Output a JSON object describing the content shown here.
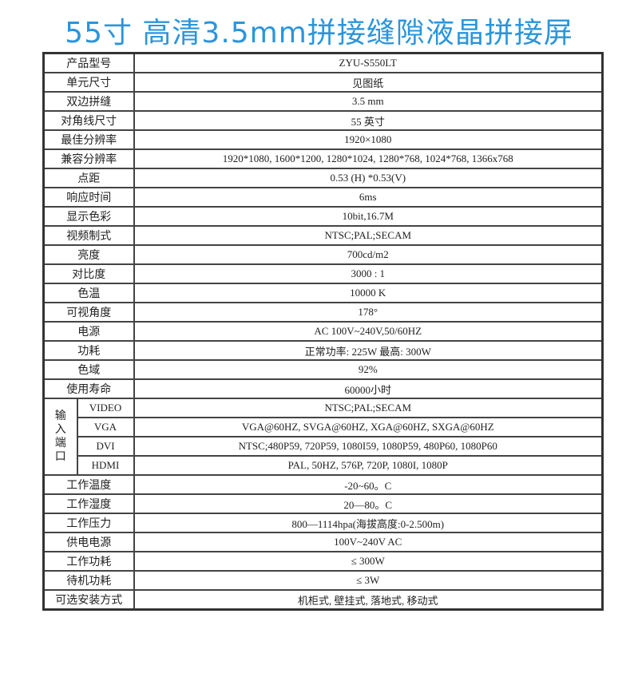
{
  "title": "55寸 高清3.5mm拼接缝隙液晶拼接屏",
  "rows_top": [
    {
      "label": "产品型号",
      "value": "ZYU-S550LT"
    },
    {
      "label": "单元尺寸",
      "value": "见图纸"
    },
    {
      "label": "双边拼缝",
      "value": "3.5 mm"
    },
    {
      "label": "对角线尺寸",
      "value": "55 英寸"
    },
    {
      "label": "最佳分辨率",
      "value": "1920×1080"
    },
    {
      "label": "兼容分辨率",
      "value": "1920*1080, 1600*1200, 1280*1024, 1280*768, 1024*768, 1366x768"
    },
    {
      "label": "点距",
      "value": "0.53 (H) *0.53(V)"
    },
    {
      "label": "响应时间",
      "value": "6ms"
    },
    {
      "label": "显示色彩",
      "value": "10bit,16.7M"
    },
    {
      "label": "视频制式",
      "value": "NTSC;PAL;SECAM"
    },
    {
      "label": "亮度",
      "value": "700cd/m2"
    },
    {
      "label": "对比度",
      "value": "3000 : 1"
    },
    {
      "label": "色温",
      "value": "10000 K"
    },
    {
      "label": "可视角度",
      "value": "178°"
    },
    {
      "label": "电源",
      "value": "AC 100V~240V,50/60HZ"
    },
    {
      "label": "功耗",
      "value": "正常功率: 225W      最高: 300W"
    },
    {
      "label": "色域",
      "value": "92%"
    },
    {
      "label": "使用寿命",
      "value": "60000小时"
    }
  ],
  "input": {
    "label": "输入端口",
    "ports": [
      {
        "label": "VIDEO",
        "value": "NTSC;PAL;SECAM"
      },
      {
        "label": "VGA",
        "value": "VGA@60HZ, SVGA@60HZ, XGA@60HZ, SXGA@60HZ"
      },
      {
        "label": "DVI",
        "value": "NTSC;480P59, 720P59, 1080I59, 1080P59, 480P60, 1080P60"
      },
      {
        "label": "HDMI",
        "value": "PAL, 50HZ, 576P, 720P, 1080I, 1080P"
      }
    ]
  },
  "rows_bottom": [
    {
      "label": "工作温度",
      "value": "-20~60。C"
    },
    {
      "label": "工作湿度",
      "value": "20—80。C"
    },
    {
      "label": "工作压力",
      "value": "800—1114hpa(海拔高度:0-2.500m)"
    },
    {
      "label": "供电电源",
      "value": "100V~240V  AC"
    },
    {
      "label": "工作功耗",
      "value": "≤ 300W"
    },
    {
      "label": "待机功耗",
      "value": "≤ 3W"
    },
    {
      "label": "可选安装方式",
      "value": "机柜式, 壁挂式, 落地式, 移动式"
    }
  ]
}
